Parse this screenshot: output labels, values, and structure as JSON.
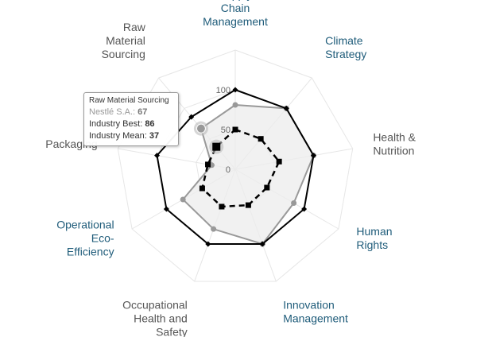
{
  "chart_data": {
    "type": "radar",
    "categories": [
      "Supply Chain Management",
      "Climate Strategy",
      "Health & Nutrition",
      "Human Rights",
      "Innovation Management",
      "Occupational Health and Safety",
      "Operational Eco-Efficiency",
      "Packaging",
      "Raw Material Sourcing"
    ],
    "category_label_lines": [
      [
        "Supply",
        "Chain",
        "Management"
      ],
      [
        "Climate",
        "Strategy"
      ],
      [
        "Health &",
        "Nutrition"
      ],
      [
        "Human",
        "Rights"
      ],
      [
        "Innovation",
        "Management"
      ],
      [
        "Occupational",
        "Health and",
        "Safety"
      ],
      [
        "Operational",
        "Eco-",
        "Efficiency"
      ],
      [
        "Packaging"
      ],
      [
        "Raw",
        "Material",
        "Sourcing"
      ]
    ],
    "category_label_colors": [
      "#1f5c7a",
      "#1f5c7a",
      "#555555",
      "#1f5c7a",
      "#1f5c7a",
      "#555555",
      "#1f5c7a",
      "#555555",
      "#555555"
    ],
    "radial_ticks": [
      "0",
      "50",
      "100"
    ],
    "ylim": [
      0,
      150
    ],
    "series": [
      {
        "name": "Industry Best",
        "color": "#000000",
        "values": [
          100,
          100,
          100,
          100,
          100,
          100,
          100,
          100,
          86
        ]
      },
      {
        "name": "Nestlé S.A.",
        "color": "#999999",
        "fill": "#ececec",
        "values": [
          81,
          100,
          100,
          85,
          100,
          80,
          76,
          30,
          67
        ]
      },
      {
        "name": "Industry Mean",
        "color": "#000000",
        "dashed": true,
        "values": [
          50,
          50,
          56,
          46,
          48,
          50,
          48,
          35,
          37
        ]
      }
    ]
  },
  "tooltip": {
    "title": "Raw Material Sourcing",
    "company_label": "Nestlé S.A.: ",
    "company_value": "67",
    "best_label": "Industry Best: ",
    "best_value": "86",
    "mean_label": "Industry Mean: ",
    "mean_value": "37"
  }
}
